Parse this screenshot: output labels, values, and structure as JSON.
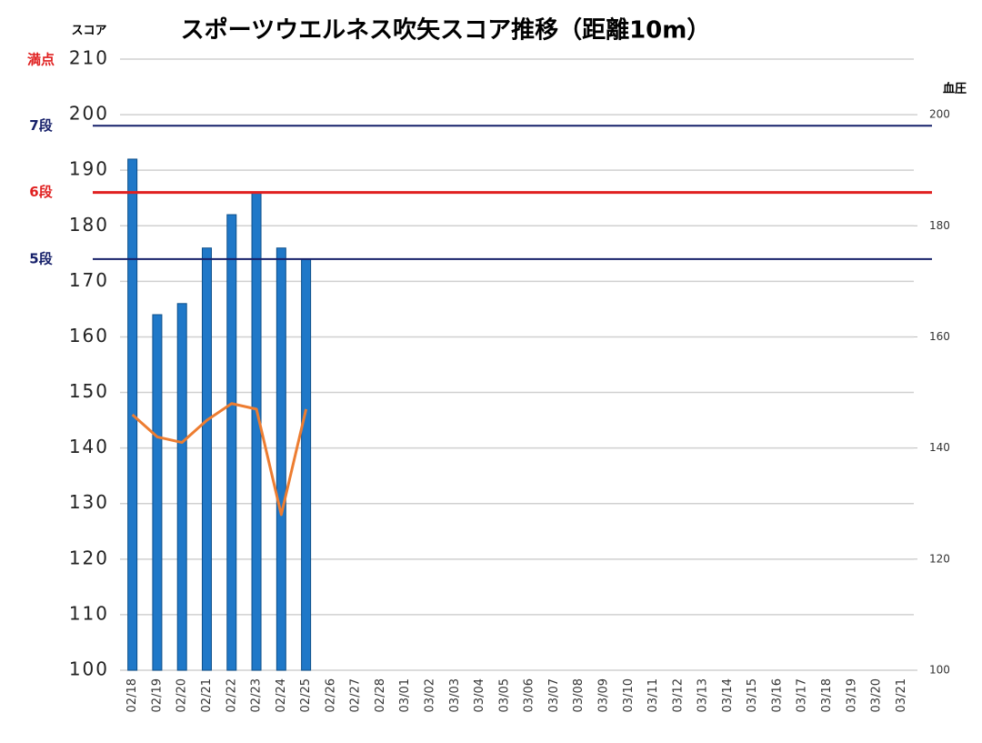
{
  "chart_data": {
    "type": "bar_line",
    "title": "スポーツウエルネス吹矢スコア推移（距離10m）",
    "y_label": "スコア",
    "y2_label": "血圧",
    "categories": [
      "02/18",
      "02/19",
      "02/20",
      "02/21",
      "02/22",
      "02/23",
      "02/24",
      "02/25",
      "02/26",
      "02/27",
      "02/28",
      "03/01",
      "03/02",
      "03/03",
      "03/04",
      "03/05",
      "03/06",
      "03/07",
      "03/08",
      "03/09",
      "03/10",
      "03/11",
      "03/12",
      "03/13",
      "03/14",
      "03/15",
      "03/16",
      "03/17",
      "03/18",
      "03/19",
      "03/20",
      "03/21"
    ],
    "series": [
      {
        "type": "bar",
        "color": "#1f78c8",
        "values": [
          192,
          164,
          166,
          176,
          182,
          186,
          176,
          174,
          null,
          null,
          null,
          null,
          null,
          null,
          null,
          null,
          null,
          null,
          null,
          null,
          null,
          null,
          null,
          null,
          null,
          null,
          null,
          null,
          null,
          null,
          null,
          null
        ]
      },
      {
        "type": "line",
        "axis": "y2",
        "color": "#ed7d31",
        "values": [
          146,
          142,
          141,
          145,
          148,
          147,
          128,
          147,
          null,
          null,
          null,
          null,
          null,
          null,
          null,
          null,
          null,
          null,
          null,
          null,
          null,
          null,
          null,
          null,
          null,
          null,
          null,
          null,
          null,
          null,
          null,
          null
        ]
      }
    ],
    "ylim": [
      100,
      210
    ],
    "yticks": [
      100,
      110,
      120,
      130,
      140,
      150,
      160,
      170,
      180,
      190,
      200,
      210
    ],
    "y2lim": [
      100,
      210
    ],
    "y2ticks": [
      100,
      120,
      140,
      160,
      180,
      200
    ],
    "grid": true,
    "reference_lines": [
      {
        "value": 210,
        "label": "満点",
        "color": "#e02020",
        "line": false
      },
      {
        "value": 198,
        "label": "7段",
        "color": "#16206a",
        "line": true
      },
      {
        "value": 186,
        "label": "6段",
        "color": "#e02020",
        "line": true
      },
      {
        "value": 174,
        "label": "5段",
        "color": "#16206a",
        "line": true
      }
    ]
  }
}
